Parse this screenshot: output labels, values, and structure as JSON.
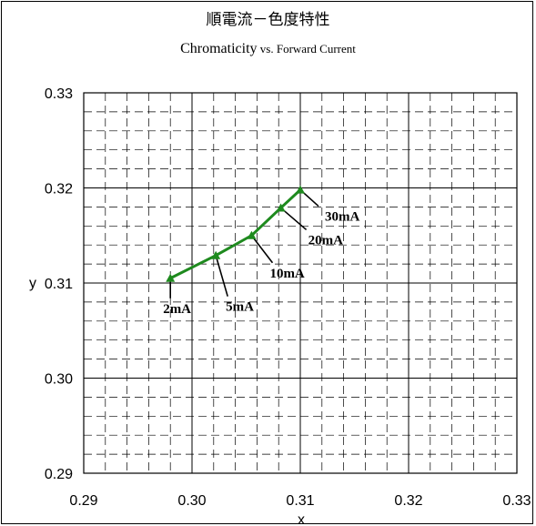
{
  "chart_data": {
    "type": "line",
    "title": "順電流－色度特性",
    "subtitle_main": "Chromaticity",
    "subtitle_rest": " vs. Forward Current",
    "xlabel": "x",
    "ylabel": "y",
    "xlim": [
      0.29,
      0.33
    ],
    "ylim": [
      0.29,
      0.33
    ],
    "x_ticks": [
      "0.29",
      "0.30",
      "0.31",
      "0.32",
      "0.33"
    ],
    "y_ticks": [
      "0.29",
      "0.30",
      "0.31",
      "0.32",
      "0.33"
    ],
    "grid": true,
    "series": [
      {
        "color": "#1e8a1e",
        "points": [
          {
            "x": 0.298,
            "y": 0.3105,
            "label": "2mA"
          },
          {
            "x": 0.3022,
            "y": 0.3129,
            "label": "5mA"
          },
          {
            "x": 0.3055,
            "y": 0.315,
            "label": "10mA"
          },
          {
            "x": 0.3082,
            "y": 0.3179,
            "label": "20mA"
          },
          {
            "x": 0.31,
            "y": 0.3198,
            "label": "30mA"
          }
        ]
      }
    ]
  }
}
